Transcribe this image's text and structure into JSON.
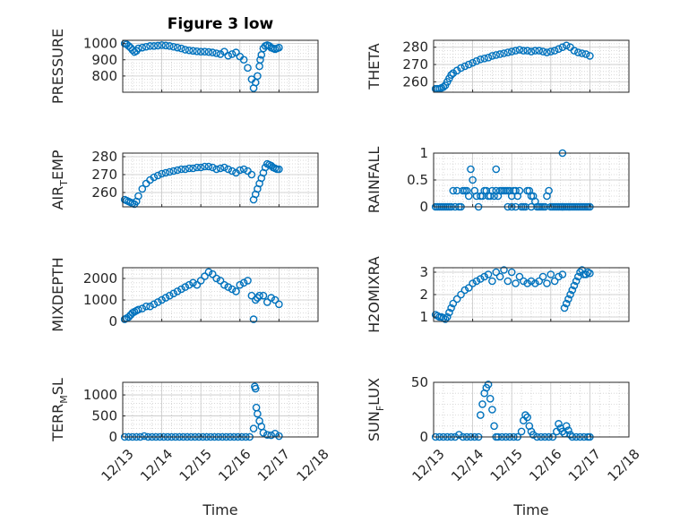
{
  "figure_title": "Figure 3 low",
  "colors": {
    "marker": "#0072BD",
    "grid": "#d0d0d0",
    "axis": "#262626"
  },
  "chart_data": [
    {
      "type": "scatter",
      "title": "Figure 3 low",
      "ylabel": "PRESSURE",
      "xlabel": "",
      "xlim": [
        0,
        5
      ],
      "ylim": [
        700,
        1020
      ],
      "yticks": [
        800,
        900,
        1000
      ],
      "grid": true,
      "series_color": "#0072BD",
      "x": [
        0.05,
        0.1,
        0.15,
        0.2,
        0.25,
        0.3,
        0.35,
        0.4,
        0.5,
        0.6,
        0.7,
        0.8,
        0.9,
        1.0,
        1.1,
        1.2,
        1.3,
        1.4,
        1.5,
        1.6,
        1.7,
        1.8,
        1.9,
        2.0,
        2.1,
        2.2,
        2.3,
        2.4,
        2.5,
        2.6,
        2.7,
        2.8,
        2.9,
        3.0,
        3.1,
        3.2,
        3.3,
        3.35,
        3.4,
        3.45,
        3.5,
        3.52,
        3.55,
        3.6,
        3.65,
        3.7,
        3.75,
        3.8,
        3.85,
        3.9,
        3.95,
        4.0
      ],
      "y": [
        1000,
        995,
        985,
        975,
        960,
        948,
        955,
        970,
        975,
        980,
        985,
        985,
        987,
        990,
        988,
        985,
        980,
        975,
        970,
        962,
        958,
        955,
        952,
        950,
        950,
        948,
        945,
        940,
        935,
        950,
        925,
        935,
        945,
        920,
        900,
        850,
        780,
        725,
        760,
        800,
        860,
        900,
        930,
        970,
        985,
        990,
        985,
        975,
        970,
        965,
        970,
        975
      ]
    },
    {
      "type": "scatter",
      "title": "",
      "ylabel": "THETA",
      "xlabel": "",
      "xlim": [
        0,
        5
      ],
      "ylim": [
        254,
        284
      ],
      "yticks": [
        260,
        270,
        280
      ],
      "grid": true,
      "series_color": "#0072BD",
      "x": [
        0.05,
        0.1,
        0.15,
        0.2,
        0.25,
        0.3,
        0.35,
        0.4,
        0.45,
        0.5,
        0.6,
        0.7,
        0.8,
        0.9,
        1.0,
        1.1,
        1.2,
        1.3,
        1.4,
        1.5,
        1.6,
        1.7,
        1.8,
        1.9,
        2.0,
        2.1,
        2.2,
        2.3,
        2.4,
        2.5,
        2.6,
        2.7,
        2.8,
        2.9,
        3.0,
        3.1,
        3.2,
        3.3,
        3.4,
        3.5,
        3.6,
        3.7,
        3.8,
        3.9,
        4.0
      ],
      "y": [
        256,
        256,
        256,
        256.5,
        257,
        258,
        260,
        262,
        264,
        265,
        266.5,
        268,
        269,
        270,
        271,
        272,
        273,
        273.5,
        274,
        275,
        275.5,
        276,
        276.5,
        277,
        277.5,
        278,
        278.5,
        278,
        278,
        277.5,
        278,
        278,
        277.5,
        277,
        277.5,
        278,
        279,
        280,
        281,
        280,
        278,
        277,
        276.5,
        276,
        275
      ]
    },
    {
      "type": "scatter",
      "title": "",
      "ylabel": "AIR_TEMP",
      "xlabel": "",
      "xlim": [
        0,
        5
      ],
      "ylim": [
        252,
        282
      ],
      "yticks": [
        260,
        270,
        280
      ],
      "grid": true,
      "series_color": "#0072BD",
      "x": [
        0.05,
        0.1,
        0.15,
        0.2,
        0.25,
        0.3,
        0.35,
        0.4,
        0.5,
        0.6,
        0.7,
        0.8,
        0.9,
        1.0,
        1.1,
        1.2,
        1.3,
        1.4,
        1.5,
        1.6,
        1.7,
        1.8,
        1.9,
        2.0,
        2.1,
        2.2,
        2.3,
        2.4,
        2.5,
        2.6,
        2.7,
        2.8,
        2.9,
        3.0,
        3.1,
        3.2,
        3.3,
        3.35,
        3.4,
        3.45,
        3.5,
        3.55,
        3.6,
        3.65,
        3.7,
        3.75,
        3.8,
        3.85,
        3.9,
        3.95,
        4.0
      ],
      "y": [
        256,
        255.5,
        255,
        254.5,
        254,
        253.5,
        255,
        258,
        262,
        265,
        267,
        268.5,
        269.5,
        270.5,
        271,
        271.5,
        272,
        272.5,
        273,
        273,
        273.5,
        273.5,
        274,
        274,
        274.5,
        274.5,
        274,
        273,
        273.5,
        274,
        273,
        272,
        271,
        272.5,
        273,
        272,
        270,
        256,
        259,
        262,
        265,
        268,
        271,
        274,
        276,
        275.5,
        275,
        274,
        273.5,
        273,
        273
      ]
    },
    {
      "type": "scatter",
      "title": "",
      "ylabel": "RAINFALL",
      "xlabel": "",
      "xlim": [
        0,
        5
      ],
      "ylim": [
        0,
        1
      ],
      "yticks": [
        0,
        0.5,
        1
      ],
      "grid": true,
      "series_color": "#0072BD",
      "x": [
        0.05,
        0.1,
        0.15,
        0.2,
        0.25,
        0.3,
        0.35,
        0.4,
        0.45,
        0.5,
        0.55,
        0.6,
        0.65,
        0.7,
        0.75,
        0.8,
        0.85,
        0.9,
        0.95,
        1.0,
        1.05,
        1.1,
        1.15,
        1.2,
        1.25,
        1.3,
        1.35,
        1.4,
        1.45,
        1.5,
        1.55,
        1.6,
        1.65,
        1.7,
        1.75,
        1.8,
        1.85,
        1.9,
        1.95,
        2.0,
        2.05,
        2.1,
        2.15,
        2.2,
        2.25,
        2.3,
        2.35,
        2.4,
        2.45,
        2.5,
        2.55,
        2.6,
        2.65,
        2.7,
        2.75,
        2.8,
        2.85,
        2.9,
        2.95,
        3.0,
        3.05,
        3.1,
        3.15,
        3.2,
        3.25,
        3.3,
        3.35,
        3.4,
        3.45,
        3.5,
        3.55,
        3.6,
        3.65,
        3.7,
        3.75,
        3.8,
        3.85,
        3.9,
        3.95,
        4.0,
        1.9,
        2.0,
        2.1,
        3.3,
        1.6,
        2.5
      ],
      "y": [
        0,
        0,
        0,
        0,
        0,
        0,
        0,
        0,
        0,
        0.3,
        0,
        0.3,
        0,
        0,
        0.3,
        0.3,
        0.3,
        0.2,
        0.7,
        0.5,
        0.3,
        0.2,
        0,
        0.2,
        0.2,
        0.3,
        0.3,
        0.2,
        0.2,
        0.3,
        0.2,
        0.3,
        0.2,
        0.3,
        0.3,
        0.3,
        0.3,
        0.3,
        0.3,
        0.2,
        0.3,
        0.3,
        0.2,
        0.3,
        0,
        0,
        0,
        0.3,
        0.3,
        0,
        0.2,
        0.1,
        0,
        0,
        0,
        0,
        0,
        0.2,
        0.3,
        0,
        0,
        0,
        0,
        0,
        0,
        0,
        0,
        0,
        0,
        0,
        0,
        0,
        0,
        0,
        0,
        0,
        0,
        0,
        0,
        0,
        0,
        0,
        0,
        0,
        0.7,
        0.2
      ],
      "note_extra": [
        [
          3.3,
          1.0
        ]
      ]
    },
    {
      "type": "scatter",
      "title": "",
      "ylabel": "MIXDEPTH",
      "xlabel": "",
      "xlim": [
        0,
        5
      ],
      "ylim": [
        0,
        2500
      ],
      "yticks": [
        0,
        1000,
        2000
      ],
      "grid": true,
      "series_color": "#0072BD",
      "x": [
        0.05,
        0.1,
        0.15,
        0.2,
        0.25,
        0.3,
        0.35,
        0.4,
        0.5,
        0.6,
        0.7,
        0.8,
        0.9,
        1.0,
        1.1,
        1.2,
        1.3,
        1.4,
        1.5,
        1.6,
        1.7,
        1.8,
        1.9,
        2.0,
        2.1,
        2.2,
        2.3,
        2.4,
        2.5,
        2.6,
        2.7,
        2.8,
        2.9,
        3.0,
        3.1,
        3.2,
        3.3,
        3.35,
        3.4,
        3.45,
        3.5,
        3.6,
        3.7,
        3.8,
        3.9,
        4.0
      ],
      "y": [
        100,
        150,
        200,
        300,
        400,
        450,
        500,
        550,
        600,
        700,
        700,
        800,
        900,
        1000,
        1100,
        1200,
        1300,
        1400,
        1500,
        1600,
        1700,
        1800,
        1700,
        1900,
        2100,
        2300,
        2200,
        2000,
        1900,
        1700,
        1600,
        1500,
        1400,
        1700,
        1800,
        1900,
        1200,
        100,
        1000,
        1100,
        1200,
        1200,
        900,
        1100,
        1000,
        800
      ]
    },
    {
      "type": "scatter",
      "title": "",
      "ylabel": "H2OMIXRA",
      "xlabel": "",
      "xlim": [
        0,
        5
      ],
      "ylim": [
        0.8,
        3.2
      ],
      "yticks": [
        1,
        2,
        3
      ],
      "grid": true,
      "series_color": "#0072BD",
      "x": [
        0.05,
        0.1,
        0.15,
        0.2,
        0.25,
        0.3,
        0.35,
        0.4,
        0.45,
        0.5,
        0.6,
        0.7,
        0.8,
        0.9,
        1.0,
        1.1,
        1.2,
        1.3,
        1.4,
        1.5,
        1.6,
        1.7,
        1.8,
        1.9,
        2.0,
        2.1,
        2.2,
        2.3,
        2.4,
        2.5,
        2.6,
        2.7,
        2.8,
        2.9,
        3.0,
        3.1,
        3.2,
        3.3,
        3.35,
        3.4,
        3.45,
        3.5,
        3.55,
        3.6,
        3.65,
        3.7,
        3.75,
        3.8,
        3.85,
        3.9,
        3.95,
        4.0
      ],
      "y": [
        1.1,
        1.05,
        1.0,
        1.0,
        0.95,
        0.9,
        1.0,
        1.2,
        1.4,
        1.6,
        1.8,
        2.0,
        2.2,
        2.3,
        2.5,
        2.6,
        2.7,
        2.8,
        2.9,
        2.6,
        3.0,
        2.8,
        3.1,
        2.6,
        3.0,
        2.5,
        2.8,
        2.6,
        2.5,
        2.6,
        2.5,
        2.6,
        2.8,
        2.5,
        2.9,
        2.6,
        2.8,
        2.9,
        1.4,
        1.6,
        1.8,
        2.0,
        2.2,
        2.4,
        2.6,
        2.8,
        3.0,
        3.1,
        2.9,
        2.9,
        3.0,
        2.95
      ]
    },
    {
      "type": "scatter",
      "title": "",
      "ylabel": "TERR_MSL",
      "xlabel": "Time",
      "xlim": [
        0,
        5
      ],
      "ylim": [
        0,
        1300
      ],
      "yticks": [
        0,
        500,
        1000
      ],
      "xticklabels": [
        "12/13",
        "12/14",
        "12/15",
        "12/16",
        "12/17",
        "12/18"
      ],
      "grid": true,
      "series_color": "#0072BD",
      "x": [
        0.05,
        0.15,
        0.25,
        0.35,
        0.45,
        0.55,
        0.65,
        0.75,
        0.85,
        0.95,
        1.05,
        1.15,
        1.25,
        1.35,
        1.45,
        1.55,
        1.65,
        1.75,
        1.85,
        1.95,
        2.05,
        2.15,
        2.25,
        2.35,
        2.45,
        2.55,
        2.65,
        2.75,
        2.85,
        2.95,
        3.05,
        3.15,
        3.25,
        3.35,
        3.38,
        3.4,
        3.42,
        3.45,
        3.5,
        3.55,
        3.6,
        3.7,
        3.8,
        3.9,
        4.0
      ],
      "y": [
        0,
        0,
        0,
        0,
        0,
        20,
        0,
        0,
        0,
        0,
        0,
        0,
        0,
        0,
        0,
        0,
        0,
        0,
        0,
        0,
        0,
        0,
        0,
        0,
        0,
        0,
        0,
        0,
        0,
        0,
        0,
        0,
        0,
        200,
        1200,
        1150,
        700,
        550,
        380,
        250,
        100,
        50,
        40,
        80,
        20
      ]
    },
    {
      "type": "scatter",
      "title": "",
      "ylabel": "SUN_FLUX",
      "xlabel": "Time",
      "xlim": [
        0,
        5
      ],
      "ylim": [
        0,
        50
      ],
      "yticks": [
        0,
        50
      ],
      "xticklabels": [
        "12/13",
        "12/14",
        "12/15",
        "12/16",
        "12/17",
        "12/18"
      ],
      "grid": true,
      "series_color": "#0072BD",
      "x": [
        0.05,
        0.15,
        0.25,
        0.35,
        0.45,
        0.55,
        0.65,
        0.75,
        0.85,
        0.95,
        1.05,
        1.15,
        1.2,
        1.25,
        1.3,
        1.35,
        1.4,
        1.45,
        1.5,
        1.55,
        1.6,
        1.65,
        1.75,
        1.85,
        1.95,
        2.05,
        2.15,
        2.25,
        2.3,
        2.35,
        2.4,
        2.45,
        2.5,
        2.55,
        2.65,
        2.75,
        2.85,
        2.95,
        3.05,
        3.15,
        3.2,
        3.25,
        3.3,
        3.35,
        3.4,
        3.45,
        3.5,
        3.55,
        3.65,
        3.75,
        3.85,
        3.95,
        4.0
      ],
      "y": [
        0,
        0,
        0,
        0,
        0,
        0,
        2,
        0,
        0,
        0,
        0,
        0,
        20,
        30,
        40,
        45,
        48,
        35,
        25,
        10,
        0,
        0,
        0,
        0,
        0,
        0,
        0,
        5,
        15,
        20,
        18,
        10,
        5,
        2,
        0,
        0,
        0,
        0,
        0,
        5,
        12,
        8,
        5,
        3,
        10,
        6,
        2,
        0,
        0,
        0,
        0,
        0,
        0
      ]
    }
  ]
}
